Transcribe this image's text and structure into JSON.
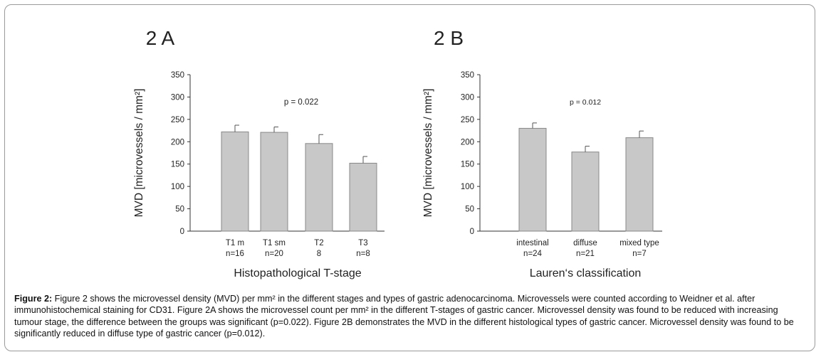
{
  "chart_data": [
    {
      "type": "bar",
      "panel_label": "2 A",
      "ylabel": "MVD [microvessels / mm²]",
      "xlabel": "Histopathological T-stage",
      "annotation": "p = 0.022",
      "ylim": [
        0,
        350
      ],
      "yticks": [
        0,
        50,
        100,
        150,
        200,
        250,
        300,
        350
      ],
      "categories": [
        {
          "name": "T1 m",
          "n": "n=16"
        },
        {
          "name": "T1 sm",
          "n": "n=20"
        },
        {
          "name": "T2",
          "n": "8"
        },
        {
          "name": "T3",
          "n": "n=8"
        }
      ],
      "values": [
        222,
        221,
        196,
        152
      ],
      "errors": [
        15,
        12,
        20,
        15
      ],
      "bar_color": "#c8c8c8"
    },
    {
      "type": "bar",
      "panel_label": "2 B",
      "ylabel": "MVD [microvessels / mm²]",
      "xlabel": "Lauren‘s classification",
      "annotation": "p = 0.012",
      "ylim": [
        0,
        350
      ],
      "yticks": [
        0,
        50,
        100,
        150,
        200,
        250,
        300,
        350
      ],
      "categories": [
        {
          "name": "intestinal",
          "n": "n=24"
        },
        {
          "name": "diffuse",
          "n": "n=21"
        },
        {
          "name": "mixed type",
          "n": "n=7"
        }
      ],
      "values": [
        230,
        177,
        209
      ],
      "errors": [
        12,
        13,
        15
      ],
      "bar_color": "#c8c8c8"
    }
  ],
  "caption": {
    "label": "Figure 2:",
    "text": " Figure 2 shows the microvessel density (MVD) per mm² in the different stages and types of gastric adenocarcinoma. Microvessels were counted according to Weidner et al. after immunohistochemical staining for CD31. Figure 2A shows the microvessel count per mm² in the different T-stages of gastric cancer. Microvessel density was found to be reduced with increasing tumour stage, the difference between the groups was significant (p=0.022). Figure 2B demonstrates the MVD in the different histological types of gastric cancer. Microvessel density was found to be significantly reduced in diffuse type of gastric cancer (p=0.012)."
  }
}
